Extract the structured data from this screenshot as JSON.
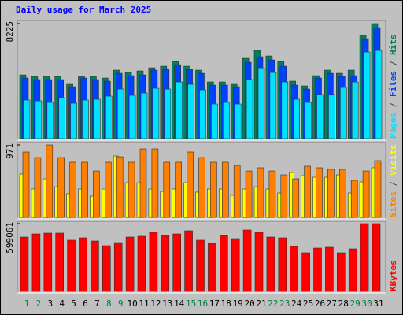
{
  "chart_data": [
    {
      "type": "bar",
      "title": "Daily usage for March 2025",
      "legend_separator": " / ",
      "ylim": [
        0,
        8225
      ],
      "yticks": [
        8225
      ],
      "series": [
        {
          "name": "Hits",
          "color": "#00805c",
          "values": [
            4560,
            4448,
            4448,
            4448,
            3885,
            4448,
            4448,
            4335,
            4898,
            4729,
            4842,
            5067,
            5180,
            5517,
            5180,
            4898,
            4054,
            4054,
            3885,
            5743,
            6306,
            5912,
            5517,
            4110,
            3772,
            4504,
            4898,
            4673,
            4898,
            7375,
            8225
          ]
        },
        {
          "name": "Files",
          "color": "#0040ff",
          "values": [
            4335,
            4223,
            4223,
            4223,
            3716,
            4335,
            4223,
            4110,
            4673,
            4504,
            4560,
            4898,
            4954,
            5292,
            4954,
            4673,
            3828,
            3828,
            3716,
            5461,
            5855,
            5630,
            5180,
            3828,
            3547,
            4335,
            4673,
            4448,
            4504,
            7150,
            7938
          ]
        },
        {
          "name": "Pages",
          "color": "#00e0ff",
          "values": [
            2759,
            2702,
            2590,
            2928,
            2534,
            2759,
            2815,
            3040,
            3547,
            3097,
            3265,
            3603,
            3547,
            4054,
            3885,
            3491,
            2477,
            2590,
            2477,
            4223,
            5067,
            4729,
            4054,
            2815,
            2590,
            3153,
            3153,
            3660,
            4054,
            6193,
            6306
          ]
        }
      ]
    },
    {
      "type": "bar",
      "legend_separator": " / ",
      "ylim": [
        0,
        971
      ],
      "yticks": [
        971
      ],
      "series": [
        {
          "name": "Visits",
          "color": "#ffff00",
          "values": [
            580,
            380,
            517,
            411,
            317,
            380,
            285,
            380,
            823,
            464,
            464,
            380,
            348,
            380,
            464,
            338,
            380,
            380,
            295,
            380,
            411,
            380,
            327,
            601,
            559,
            538,
            538,
            570,
            327,
            475,
            665
          ]
        },
        {
          "name": "Sites",
          "color": "#ff8000",
          "values": [
            876,
            802,
            971,
            802,
            739,
            739,
            622,
            739,
            812,
            739,
            918,
            918,
            739,
            739,
            876,
            802,
            739,
            739,
            696,
            622,
            665,
            622,
            570,
            517,
            686,
            665,
            644,
            644,
            496,
            622,
            760
          ]
        }
      ]
    },
    {
      "type": "bar",
      "ylim": [
        0,
        599061
      ],
      "yticks": [
        599061
      ],
      "categories": [
        "1",
        "2",
        "3",
        "4",
        "5",
        "6",
        "7",
        "8",
        "9",
        "10",
        "11",
        "12",
        "13",
        "14",
        "15",
        "16",
        "17",
        "18",
        "19",
        "20",
        "21",
        "22",
        "23",
        "24",
        "25",
        "26",
        "27",
        "28",
        "29",
        "30",
        "31"
      ],
      "x_label_colors": [
        "#008040",
        "#008040",
        "#000000",
        "#000000",
        "#000000",
        "#000000",
        "#000000",
        "#008040",
        "#008040",
        "#000000",
        "#000000",
        "#000000",
        "#000000",
        "#000000",
        "#008040",
        "#008040",
        "#000000",
        "#000000",
        "#000000",
        "#000000",
        "#000000",
        "#008040",
        "#008040",
        "#000000",
        "#000000",
        "#000000",
        "#000000",
        "#000000",
        "#008040",
        "#008040",
        "#000000"
      ],
      "series": [
        {
          "name": "KBytes",
          "color": "#ff0000",
          "values": [
            480654,
            508518,
            515484,
            515484,
            452790,
            473688,
            445824,
            404028,
            431892,
            480654,
            487620,
            522450,
            494586,
            508518,
            536382,
            452790,
            424926,
            494586,
            466722,
            543348,
            522450,
            480654,
            473688,
            397062,
            341334,
            383130,
            390096,
            341334,
            376164,
            599061,
            599061
          ]
        }
      ]
    }
  ]
}
